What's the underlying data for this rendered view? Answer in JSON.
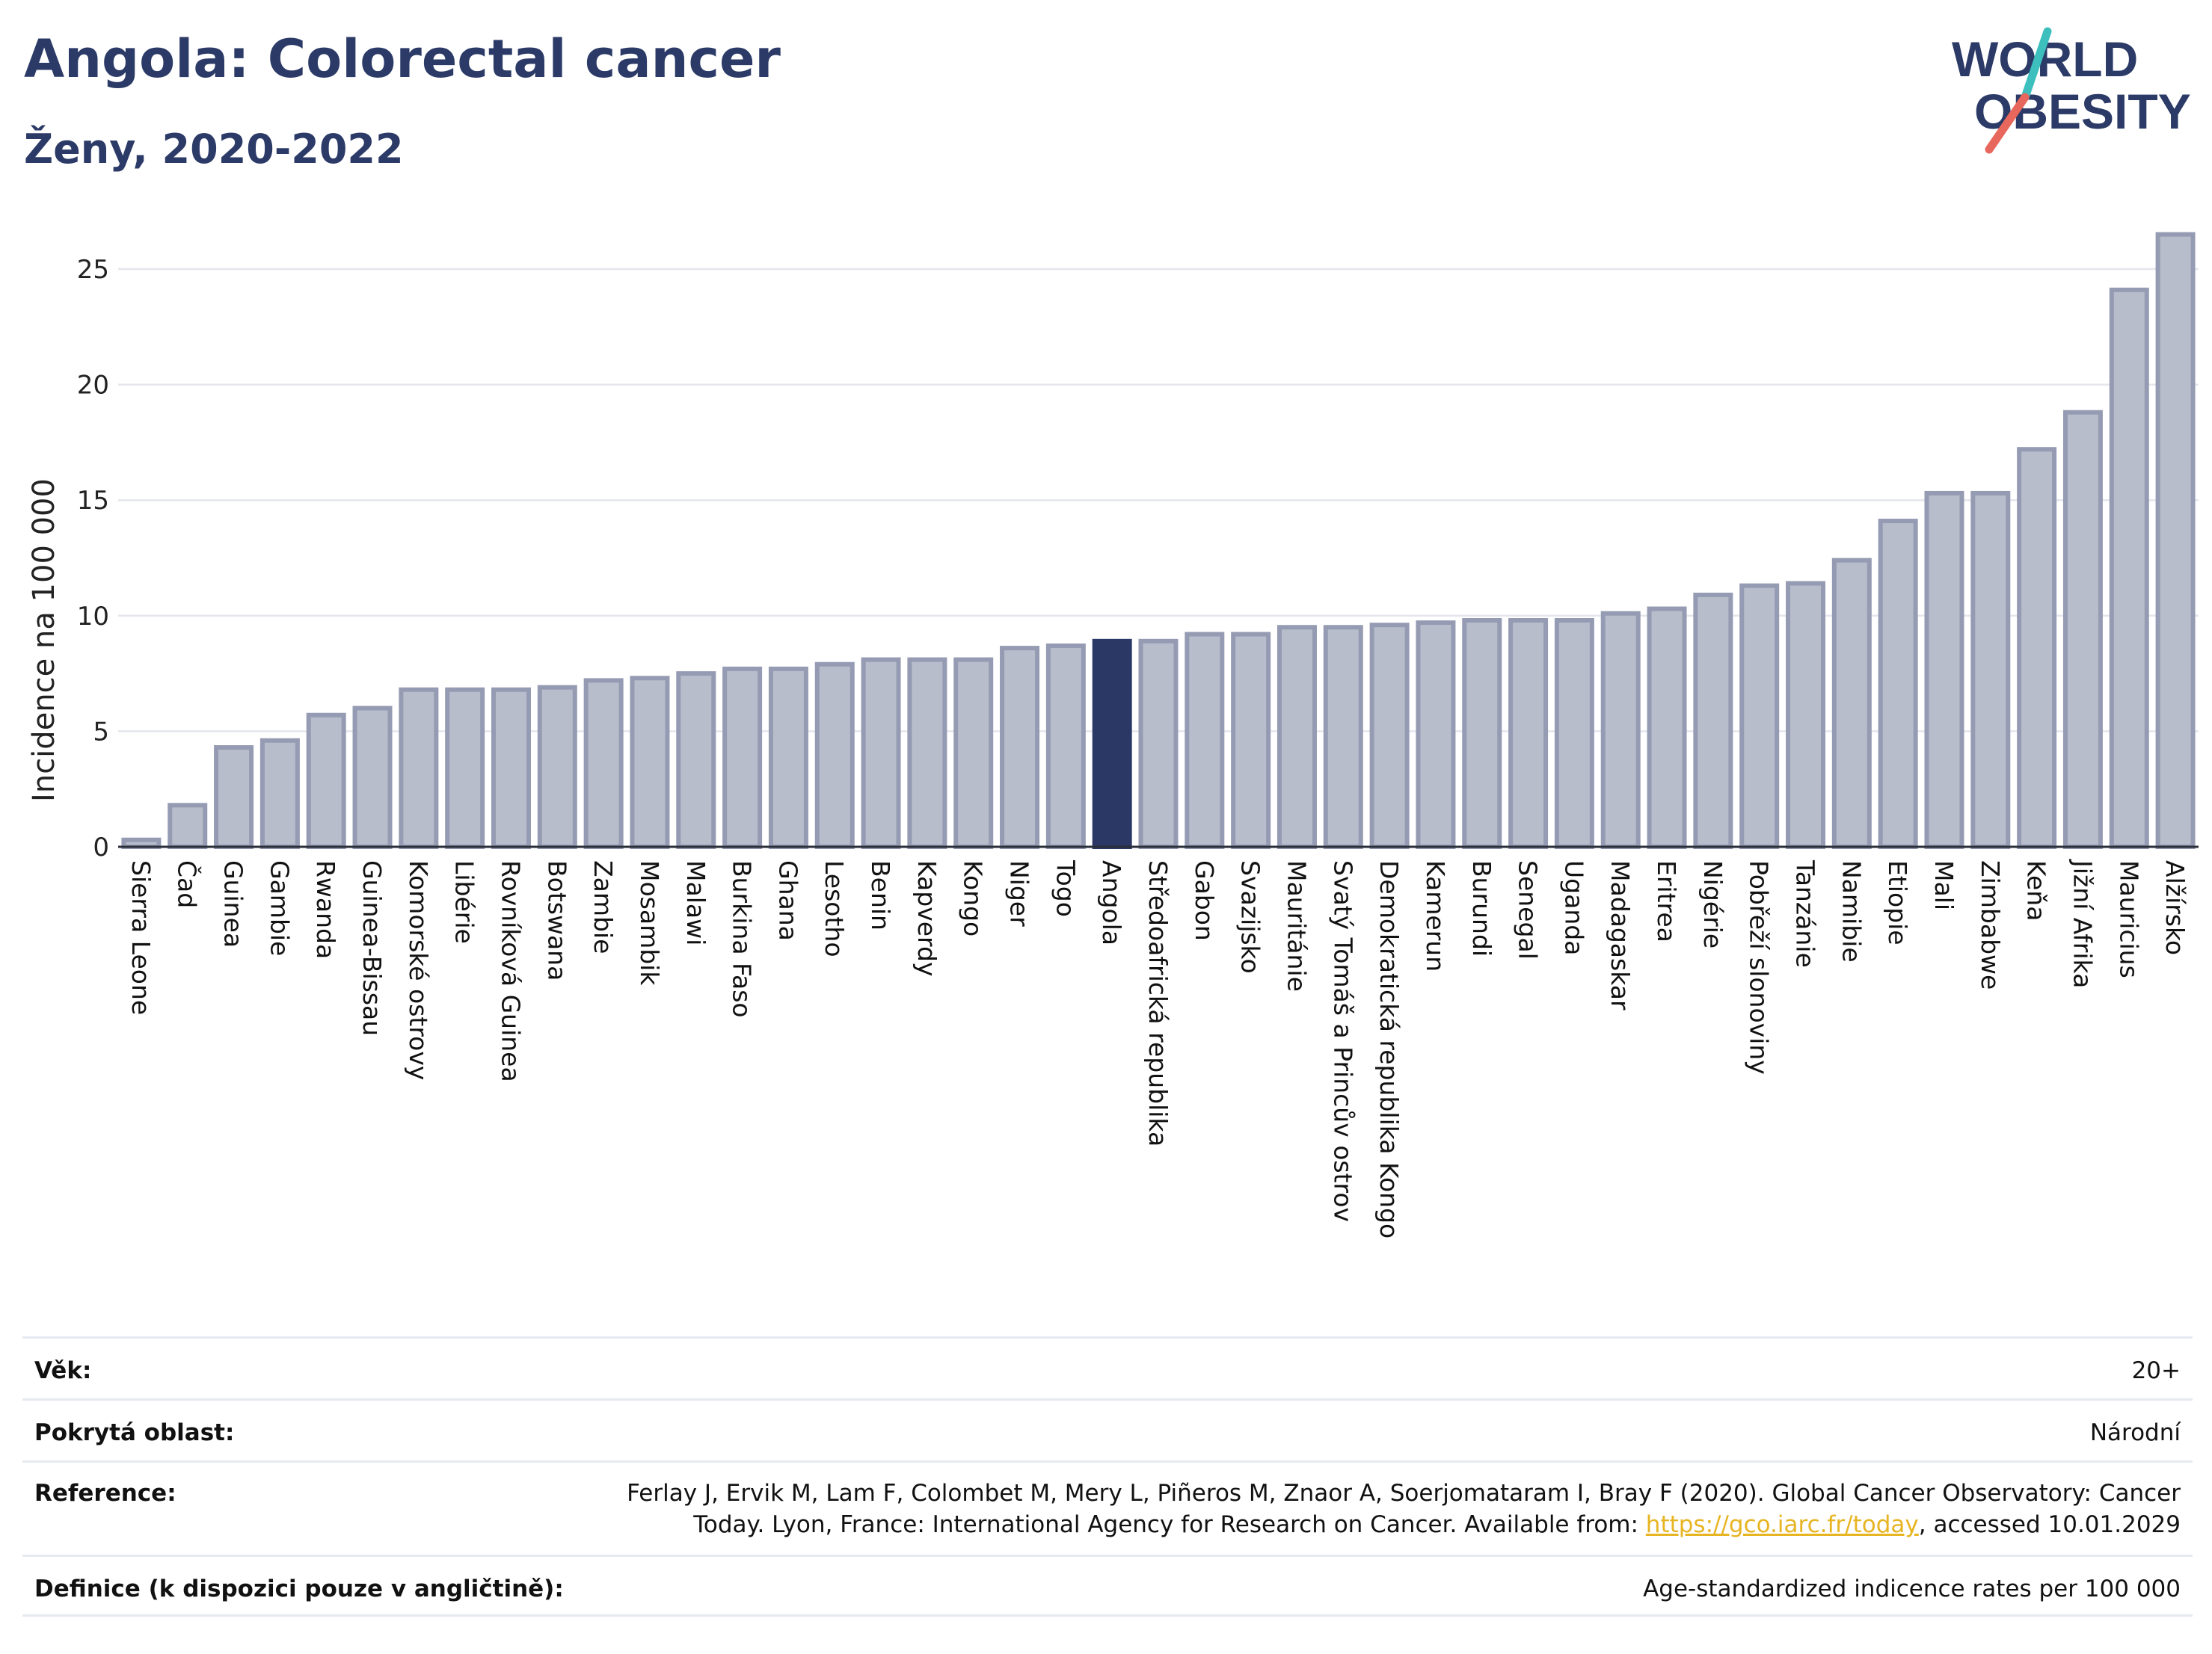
{
  "header": {
    "title": "Angola: Colorectal cancer",
    "subtitle": "Ženy, 2020-2022",
    "logo_line1": "WORLD",
    "logo_line2": "OBESITY"
  },
  "colors": {
    "title": "#2b3a67",
    "bar_fill": "#b8bdcc",
    "bar_stroke": "#959bb2",
    "highlight_fill": "#2b3866",
    "logo_teal": "#3cbfbd",
    "logo_red": "#e8675d",
    "link": "#e7b422"
  },
  "chart_data": {
    "type": "bar",
    "title": "Angola: Colorectal cancer",
    "subtitle": "Ženy, 2020-2022",
    "ylabel": "Incidence na 100 000",
    "xlabel": "",
    "ylim": [
      0,
      27
    ],
    "yticks": [
      0,
      5,
      10,
      15,
      20,
      25
    ],
    "grid": true,
    "highlight": "Angola",
    "categories": [
      "Sierra Leone",
      "Čad",
      "Guinea",
      "Gambie",
      "Rwanda",
      "Guinea-Bissau",
      "Komorské ostrovy",
      "Libérie",
      "Rovníková Guinea",
      "Botswana",
      "Zambie",
      "Mosambik",
      "Malawi",
      "Burkina Faso",
      "Ghana",
      "Lesotho",
      "Benin",
      "Kapverdy",
      "Kongo",
      "Niger",
      "Togo",
      "Angola",
      "Středoafrická republika",
      "Gabon",
      "Svazijsko",
      "Mauritánie",
      "Svatý Tomáš a Princův ostrov",
      "Demokratická republika Kongo",
      "Kamerun",
      "Burundi",
      "Senegal",
      "Uganda",
      "Madagaskar",
      "Eritrea",
      "Nigérie",
      "Pobřeží slonoviny",
      "Tanzánie",
      "Namibie",
      "Etiopie",
      "Mali",
      "Zimbabwe",
      "Keňa",
      "Jižní Afrika",
      "Mauricius",
      "Alžírsko"
    ],
    "values": [
      0.3,
      1.8,
      4.3,
      4.6,
      5.7,
      6.0,
      6.8,
      6.8,
      6.8,
      6.9,
      7.2,
      7.3,
      7.5,
      7.7,
      7.7,
      7.9,
      8.1,
      8.1,
      8.1,
      8.6,
      8.7,
      8.9,
      8.9,
      9.2,
      9.2,
      9.5,
      9.5,
      9.6,
      9.7,
      9.8,
      9.8,
      9.8,
      10.1,
      10.3,
      10.9,
      11.3,
      11.4,
      12.4,
      14.1,
      15.3,
      15.3,
      17.2,
      18.8,
      24.1,
      26.5
    ]
  },
  "info": {
    "age_label": "Věk:",
    "age_value": "20+",
    "area_label": "Pokrytá oblast:",
    "area_value": "Národní",
    "reference_label": "Reference:",
    "reference_line1": "Ferlay J, Ervik M, Lam F, Colombet M, Mery L, Piñeros M, Znaor A, Soerjomataram I, Bray F (2020). Global Cancer Observatory: Cancer",
    "reference_line2_pre": "Today. Lyon, France: International Agency for Research on Cancer. Available from: ",
    "reference_link": "https://gco.iarc.fr/today",
    "reference_line2_post": ", accessed 10.01.2029",
    "definition_label": "Definice (k dispozici pouze v angličtině):",
    "definition_value": "Age-standardized indicence rates per 100 000"
  }
}
